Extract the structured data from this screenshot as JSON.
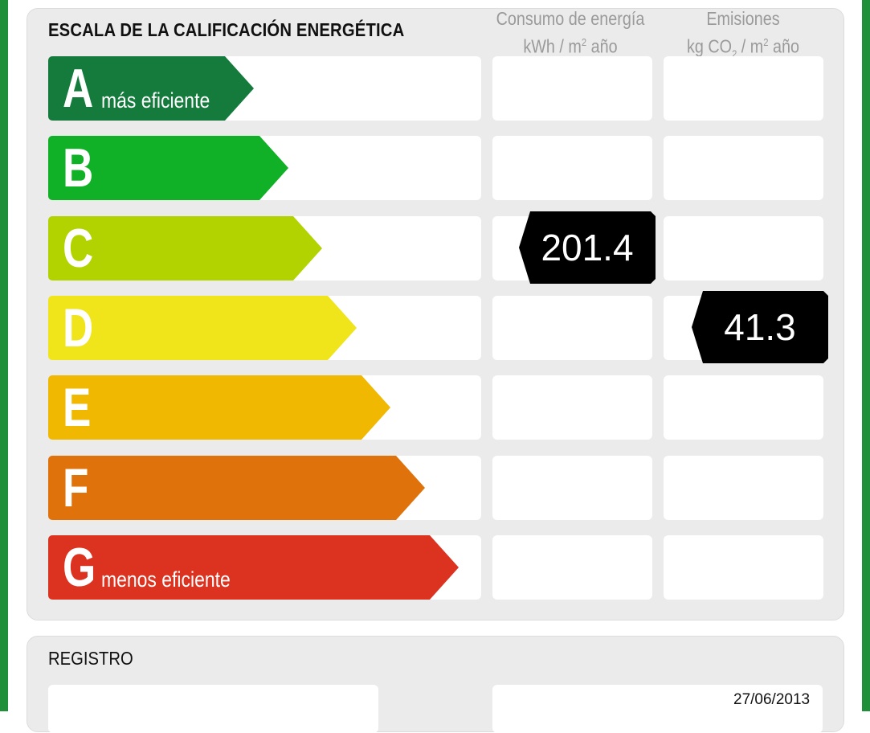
{
  "title": "ESCALA DE LA CALIFICACIÓN ENERGÉTICA",
  "columns": {
    "consumo": {
      "line1": "Consumo de energía",
      "line2_pre": "kWh / m",
      "line2_sup": "2",
      "line2_post": " año"
    },
    "emisiones": {
      "line1": "Emisiones",
      "line2_pre": "kg CO",
      "line2_sub": "2",
      "line2_mid": " / m",
      "line2_sup": "2",
      "line2_post": " año"
    }
  },
  "ratings": [
    {
      "letter": "A",
      "sub": "más eficiente",
      "color": "#147b3c"
    },
    {
      "letter": "B",
      "sub": "",
      "color": "#10b027"
    },
    {
      "letter": "C",
      "sub": "",
      "color": "#b2d300"
    },
    {
      "letter": "D",
      "sub": "",
      "color": "#f0e41a"
    },
    {
      "letter": "E",
      "sub": "",
      "color": "#f0b800"
    },
    {
      "letter": "F",
      "sub": "",
      "color": "#e0720c"
    },
    {
      "letter": "G",
      "sub": "menos eficiente",
      "color": "#dc3220"
    }
  ],
  "consumo_value": "201.4",
  "consumo_rating": "C",
  "emisiones_value": "41.3",
  "emisiones_rating": "D",
  "registro": {
    "title": "REGISTRO",
    "date": "27/06/2013"
  }
}
